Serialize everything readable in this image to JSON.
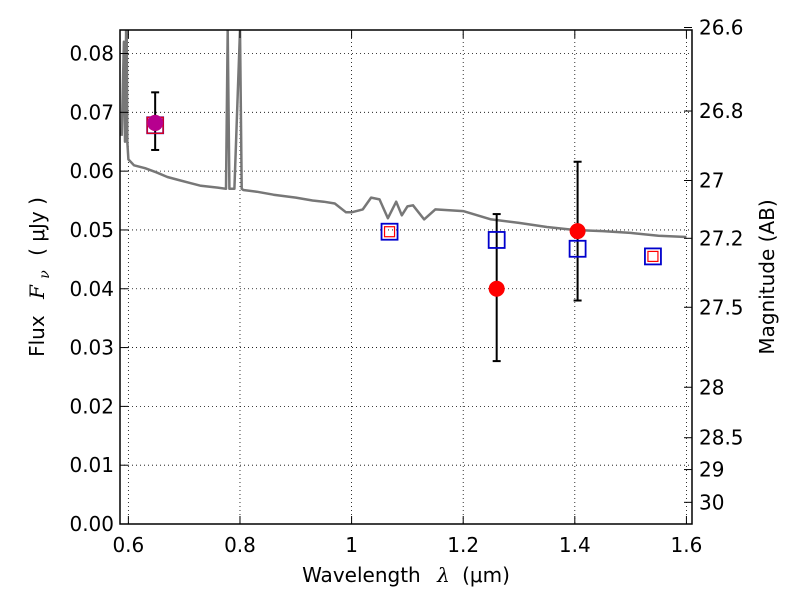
{
  "chart_data": {
    "type": "scatter",
    "xlabel_prefix": "Wavelength",
    "xlabel_symbol": "λ",
    "xlabel_unit": "(μm)",
    "ylabel_prefix": "Flux",
    "ylabel_symbol": "F",
    "ylabel_subscript": "ν",
    "ylabel_unit": "( μJy )",
    "y2label": "Magnitude (AB)",
    "xlim": [
      0.585,
      1.61
    ],
    "ylim": [
      0.0,
      0.084
    ],
    "x_ticks": [
      0.6,
      0.8,
      1.0,
      1.2,
      1.4,
      1.6
    ],
    "x_tick_labels": [
      "0.6",
      "0.8",
      "1",
      "1.2",
      "1.4",
      "1.6"
    ],
    "y_ticks": [
      0.0,
      0.01,
      0.02,
      0.03,
      0.04,
      0.05,
      0.06,
      0.07,
      0.08
    ],
    "y_tick_labels": [
      "0.00",
      "0.01",
      "0.02",
      "0.03",
      "0.04",
      "0.05",
      "0.06",
      "0.07",
      "0.08"
    ],
    "y2_tick_labels": [
      "26.6",
      "26.8",
      "27",
      "27.2",
      "27.5",
      "28",
      "28.5",
      "29",
      "30"
    ],
    "grid": true,
    "colors": {
      "model": "#777777",
      "observed": "#ff0000",
      "observed_outline_on_first": "#9900cc",
      "model_photometry_outer": "#0000cc",
      "model_photometry_inner": "#ff0000",
      "errorbar": "#000000"
    },
    "model_spectrum": {
      "x": [
        0.588,
        0.592,
        0.594,
        0.596,
        0.597,
        0.598,
        0.6,
        0.61,
        0.63,
        0.65,
        0.67,
        0.69,
        0.71,
        0.73,
        0.76,
        0.775,
        0.778,
        0.781,
        0.79,
        0.8,
        0.803,
        0.806,
        0.83,
        0.86,
        0.9,
        0.93,
        0.95,
        0.97,
        0.99,
        1.0,
        1.02,
        1.035,
        1.05,
        1.065,
        1.08,
        1.09,
        1.1,
        1.11,
        1.13,
        1.15,
        1.2,
        1.25,
        1.3,
        1.35,
        1.4,
        1.45,
        1.5,
        1.55,
        1.6
      ],
      "y": [
        0.066,
        0.082,
        0.065,
        0.084,
        0.084,
        0.065,
        0.062,
        0.061,
        0.0605,
        0.0598,
        0.059,
        0.0585,
        0.058,
        0.0575,
        0.0572,
        0.057,
        0.084,
        0.057,
        0.057,
        0.084,
        0.057,
        0.0568,
        0.0565,
        0.056,
        0.0555,
        0.055,
        0.0548,
        0.0545,
        0.053,
        0.053,
        0.0535,
        0.0555,
        0.0552,
        0.052,
        0.0548,
        0.0525,
        0.054,
        0.0542,
        0.0518,
        0.0535,
        0.0532,
        0.0518,
        0.0512,
        0.0505,
        0.05,
        0.0498,
        0.0495,
        0.049,
        0.0488
      ]
    },
    "observed_points": [
      {
        "x": 0.648,
        "y": 0.0682,
        "yerr_low": 0.0046,
        "yerr_high": 0.0052
      },
      {
        "x": 1.26,
        "y": 0.04,
        "yerr_low": 0.0123,
        "yerr_high": 0.0127
      },
      {
        "x": 1.405,
        "y": 0.0498,
        "yerr_low": 0.0118,
        "yerr_high": 0.0118
      }
    ],
    "model_photometry": [
      {
        "x": 0.648,
        "y": 0.0678,
        "outer_size": "large",
        "inner_size": "medium"
      },
      {
        "x": 1.068,
        "y": 0.0497,
        "outer_size": "medium",
        "inner_size": "small"
      },
      {
        "x": 1.26,
        "y": 0.0483,
        "outer_size": "medium",
        "inner_size": "none"
      },
      {
        "x": 1.405,
        "y": 0.0468,
        "outer_size": "medium",
        "inner_size": "none"
      },
      {
        "x": 1.54,
        "y": 0.0455,
        "outer_size": "medium",
        "inner_size": "small"
      }
    ]
  }
}
